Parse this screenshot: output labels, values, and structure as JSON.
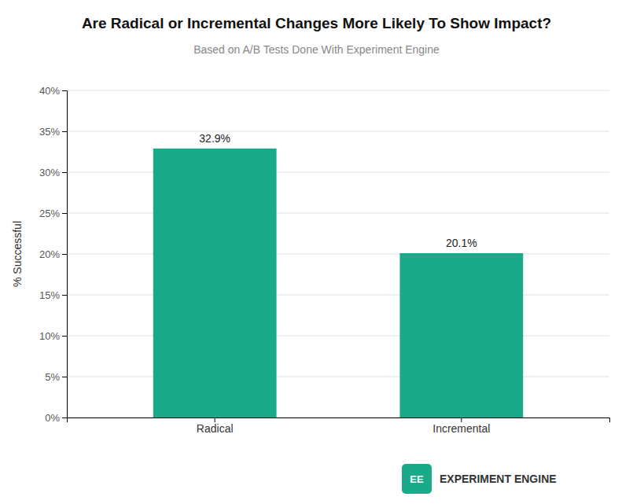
{
  "chart_data": {
    "type": "bar",
    "title": "Are Radical or Incremental Changes More Likely To Show Impact?",
    "subtitle": "Based on A/B Tests Done With Experiment Engine",
    "categories": [
      "Radical",
      "Incremental"
    ],
    "values": [
      32.9,
      20.1
    ],
    "value_labels": [
      "32.9%",
      "20.1%"
    ],
    "data_labels": true,
    "color": "#1aaa8a",
    "ylabel": "% Successful",
    "ylim": [
      0,
      40
    ],
    "yticks": [
      {
        "value": 0,
        "label": "0%"
      },
      {
        "value": 5,
        "label": "5%"
      },
      {
        "value": 10,
        "label": "10%"
      },
      {
        "value": 15,
        "label": "15%"
      },
      {
        "value": 20,
        "label": "20%"
      },
      {
        "value": 25,
        "label": "25%"
      },
      {
        "value": 30,
        "label": "30%"
      },
      {
        "value": 35,
        "label": "35%"
      },
      {
        "value": 40,
        "label": "40%"
      }
    ],
    "grid": true,
    "annotations": [
      {
        "text": "EE",
        "color": "#1aaa8a"
      },
      {
        "text": "EXPERIMENT ENGINE",
        "color": "#333333"
      }
    ]
  }
}
